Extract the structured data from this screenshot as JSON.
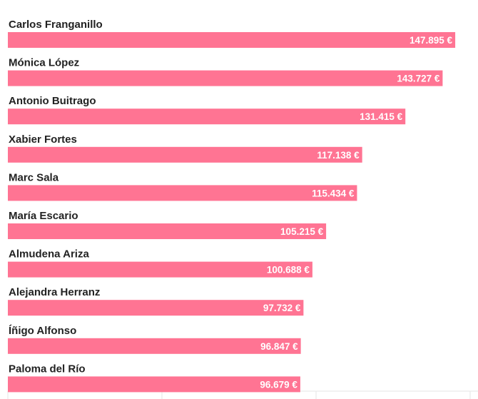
{
  "chart_data": {
    "type": "bar",
    "orientation": "horizontal",
    "categories": [
      "Carlos Franganillo",
      "Mónica López",
      "Antonio Buitrago",
      "Xabier Fortes",
      "Marc Sala",
      "María Escario",
      "Almudena Ariza",
      "Alejandra Herranz",
      "Íñigo Alfonso",
      "Paloma del Río"
    ],
    "values": [
      147895,
      143727,
      131415,
      117138,
      115434,
      105215,
      100688,
      97732,
      96847,
      96679
    ],
    "value_labels": [
      "147.895 €",
      "143.727 €",
      "131.415 €",
      "117.138 €",
      "115.434 €",
      "105.215 €",
      "100.688 €",
      "97.732 €",
      "96.847 €",
      "96.679 €"
    ],
    "xlim": [
      0,
      150000
    ],
    "grid": true,
    "colors": {
      "bar": "#ff7493",
      "label": "#222222",
      "value_text": "#ffffff"
    }
  }
}
